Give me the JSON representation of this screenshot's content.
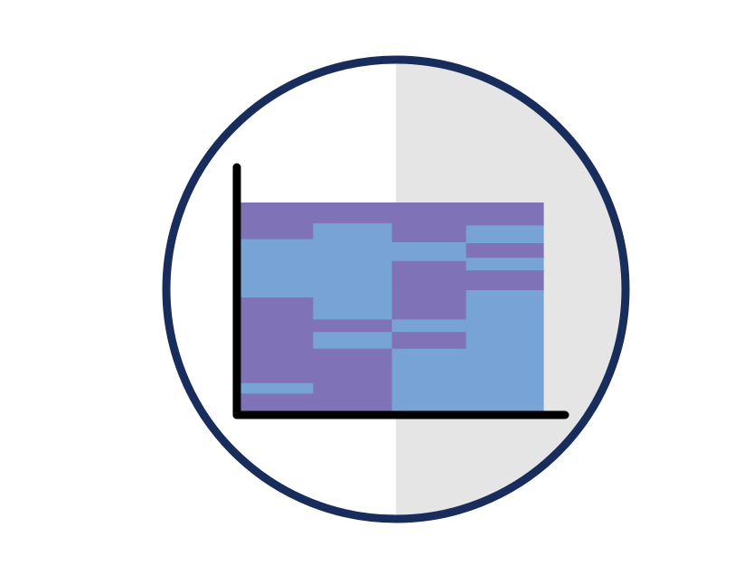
{
  "icon": {
    "name": "mosaic-chart-icon",
    "colors": {
      "background": "#ffffff",
      "circle_outline": "#182d5c",
      "circle_right_half_fill": "#e5e5e6",
      "axis": "#000000",
      "segment_primary": "#7f72b6",
      "segment_secondary": "#78a3d6"
    }
  },
  "chart_data": {
    "type": "mosaic",
    "columns": [
      {
        "width_share": 0.24,
        "segments": [
          {
            "color": "segment_primary",
            "share": 0.175
          },
          {
            "color": "segment_secondary",
            "share": 0.28
          },
          {
            "color": "segment_primary",
            "share": 0.41
          },
          {
            "color": "segment_secondary",
            "share": 0.05
          },
          {
            "color": "segment_primary",
            "share": 0.085
          }
        ]
      },
      {
        "width_share": 0.26,
        "segments": [
          {
            "color": "segment_primary",
            "share": 0.1
          },
          {
            "color": "segment_secondary",
            "share": 0.46
          },
          {
            "color": "segment_primary",
            "share": 0.06
          },
          {
            "color": "segment_secondary",
            "share": 0.08
          },
          {
            "color": "segment_primary",
            "share": 0.3
          }
        ]
      },
      {
        "width_share": 0.245,
        "segments": [
          {
            "color": "segment_primary",
            "share": 0.19
          },
          {
            "color": "segment_secondary",
            "share": 0.09
          },
          {
            "color": "segment_primary",
            "share": 0.28
          },
          {
            "color": "segment_secondary",
            "share": 0.06
          },
          {
            "color": "segment_primary",
            "share": 0.08
          },
          {
            "color": "segment_secondary",
            "share": 0.3
          }
        ]
      },
      {
        "width_share": 0.255,
        "segments": [
          {
            "color": "segment_primary",
            "share": 0.11
          },
          {
            "color": "segment_secondary",
            "share": 0.085
          },
          {
            "color": "segment_primary",
            "share": 0.07
          },
          {
            "color": "segment_secondary",
            "share": 0.06
          },
          {
            "color": "segment_primary",
            "share": 0.095
          },
          {
            "color": "segment_secondary",
            "share": 0.58
          }
        ]
      }
    ]
  }
}
